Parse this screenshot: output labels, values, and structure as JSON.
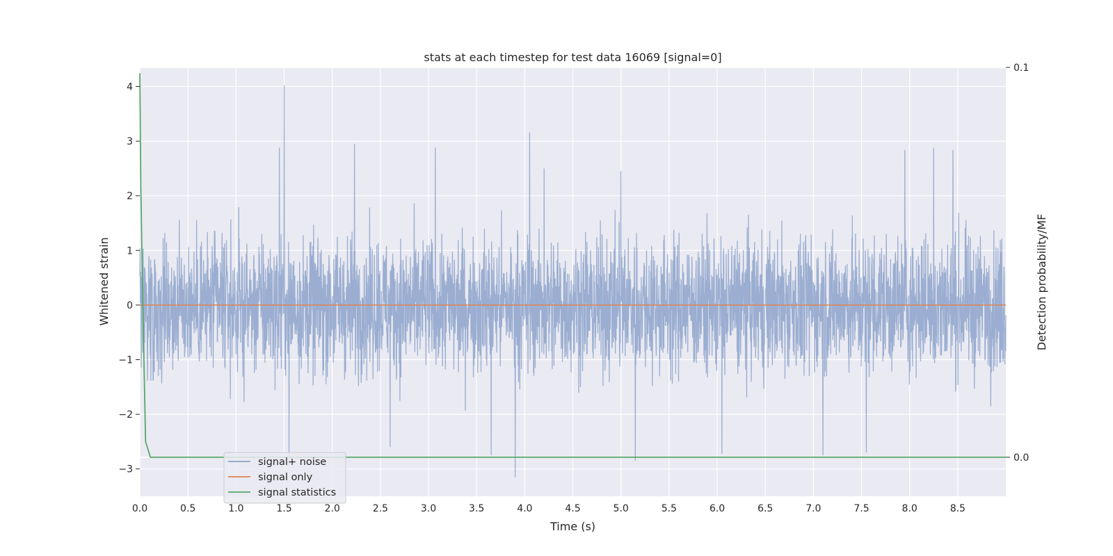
{
  "chart_data": {
    "type": "line",
    "title": "stats at each timestep for test data 16069 [signal=0]",
    "xlabel": "Time (s)",
    "ylabel": "Whitened strain",
    "ylabel_right": "Detection probability/MF",
    "xlim": [
      0.0,
      9.0
    ],
    "ylim": [
      -3.5,
      4.35
    ],
    "ylim_right": [
      -0.01,
      0.1
    ],
    "x_ticks": [
      "0.0",
      "0.5",
      "1.0",
      "1.5",
      "2.0",
      "2.5",
      "3.0",
      "3.5",
      "4.0",
      "4.5",
      "5.0",
      "5.5",
      "6.0",
      "6.5",
      "7.0",
      "7.5",
      "8.0",
      "8.5"
    ],
    "y_ticks": [
      "4",
      "3",
      "2",
      "1",
      "0",
      "−1",
      "−2",
      "−3"
    ],
    "y_ticks_right": [
      "0.1",
      "0.0"
    ],
    "grid": true,
    "background": "#eaeaf2",
    "legend_placement": "lower-left",
    "series": [
      {
        "name": "signal+ noise",
        "color": "#4c72b0",
        "kind": "noise",
        "axis": "left",
        "typical_range": [
          -1.3,
          1.3
        ],
        "peak_highs": [
          [
            1.5,
            4.02
          ],
          [
            4.05,
            3.16
          ],
          [
            2.23,
            2.95
          ],
          [
            1.45,
            2.88
          ],
          [
            3.07,
            2.88
          ],
          [
            8.25,
            2.88
          ],
          [
            7.95,
            2.84
          ],
          [
            8.45,
            2.84
          ],
          [
            4.2,
            2.5
          ],
          [
            5.0,
            2.45
          ]
        ],
        "peak_lows": [
          [
            3.9,
            -3.15
          ],
          [
            1.55,
            -2.92
          ],
          [
            5.15,
            -2.85
          ],
          [
            3.65,
            -2.75
          ],
          [
            7.1,
            -2.75
          ],
          [
            6.05,
            -2.72
          ],
          [
            7.55,
            -2.7
          ],
          [
            2.6,
            -2.6
          ]
        ]
      },
      {
        "name": "signal only",
        "color": "#dd8452",
        "axis": "left",
        "x": [
          0.0,
          9.0
        ],
        "y": [
          0.0,
          0.0
        ]
      },
      {
        "name": "signal statistics",
        "color": "#55a868",
        "axis": "right",
        "x": [
          0.0,
          0.01,
          0.03,
          0.06,
          0.11,
          0.2,
          1.0,
          3.0,
          5.0,
          7.0,
          8.5,
          8.7,
          9.0
        ],
        "y": [
          0.0985,
          0.07,
          0.04,
          0.004,
          0.0,
          0.0,
          0.0,
          0.0,
          0.0,
          0.0,
          0.0,
          0.0,
          0.0
        ]
      }
    ]
  }
}
